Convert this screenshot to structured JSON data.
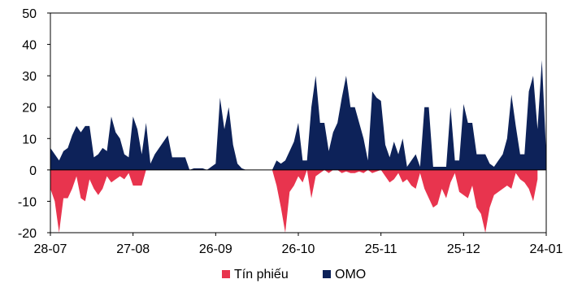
{
  "chart_data": {
    "type": "area",
    "x_tick_labels": [
      "28-07",
      "27-08",
      "26-09",
      "26-10",
      "25-11",
      "25-12",
      "24-01"
    ],
    "y_tick_labels": [
      "50",
      "40",
      "30",
      "20",
      "10",
      "0",
      "-10",
      "-20"
    ],
    "ylim": [
      -20,
      50
    ],
    "y_ticks": [
      50,
      40,
      30,
      20,
      10,
      0,
      -10,
      -20
    ],
    "grid": false,
    "legend_position": "bottom",
    "series": [
      {
        "name": "Tín phiếu",
        "color": "#e8344e",
        "points": [
          [
            0,
            -6
          ],
          [
            1,
            -10
          ],
          [
            2,
            -20
          ],
          [
            3,
            -9
          ],
          [
            4,
            -9
          ],
          [
            5,
            -6
          ],
          [
            6,
            -2
          ],
          [
            7,
            -9
          ],
          [
            8,
            -10
          ],
          [
            9,
            -3
          ],
          [
            10,
            -6
          ],
          [
            11,
            -8
          ],
          [
            12,
            -6
          ],
          [
            13,
            -2
          ],
          [
            14,
            -4
          ],
          [
            15,
            -3
          ],
          [
            16,
            -2
          ],
          [
            17,
            -3
          ],
          [
            18,
            -1
          ],
          [
            19,
            -5
          ],
          [
            20,
            -5
          ],
          [
            21,
            -5
          ],
          [
            22,
            0
          ],
          [
            23,
            0
          ],
          [
            30,
            0
          ],
          [
            31,
            0
          ],
          [
            50,
            0
          ],
          [
            51,
            0
          ],
          [
            52,
            -5
          ],
          [
            53,
            -12
          ],
          [
            54,
            -20
          ],
          [
            55,
            -7
          ],
          [
            56,
            -5
          ],
          [
            57,
            -2
          ],
          [
            58,
            -4
          ],
          [
            59,
            0
          ],
          [
            60,
            -9
          ],
          [
            61,
            -2
          ],
          [
            62,
            -1
          ],
          [
            63,
            0
          ],
          [
            64,
            -1
          ],
          [
            65,
            0
          ],
          [
            66,
            0
          ],
          [
            67,
            -1
          ],
          [
            68,
            -0.5
          ],
          [
            69,
            -1
          ],
          [
            70,
            -1
          ],
          [
            71,
            -0.5
          ],
          [
            72,
            -1
          ],
          [
            73,
            0
          ],
          [
            74,
            -1
          ],
          [
            75,
            -0.5
          ],
          [
            76,
            0
          ],
          [
            77,
            -2
          ],
          [
            78,
            -4
          ],
          [
            79,
            -3
          ],
          [
            80,
            -1
          ],
          [
            81,
            -4
          ],
          [
            82,
            -3
          ],
          [
            83,
            -5
          ],
          [
            84,
            -6
          ],
          [
            85,
            -1
          ],
          [
            86,
            -6
          ],
          [
            87,
            -9
          ],
          [
            88,
            -12
          ],
          [
            89,
            -11
          ],
          [
            90,
            -6
          ],
          [
            91,
            -9
          ],
          [
            92,
            -4
          ],
          [
            93,
            -1
          ],
          [
            94,
            -7
          ],
          [
            95,
            -8
          ],
          [
            96,
            -9
          ],
          [
            97,
            -5
          ],
          [
            98,
            -12
          ],
          [
            99,
            -14
          ],
          [
            100,
            -20
          ],
          [
            101,
            -12
          ],
          [
            102,
            -8
          ],
          [
            103,
            -7
          ],
          [
            104,
            -6
          ],
          [
            105,
            -5
          ],
          [
            106,
            -6
          ],
          [
            107,
            -1
          ],
          [
            108,
            -3
          ],
          [
            109,
            -4
          ],
          [
            110,
            -6
          ],
          [
            111,
            -10
          ],
          [
            112,
            -3
          ]
        ]
      },
      {
        "name": "OMO",
        "color": "#0d2259",
        "points": [
          [
            0,
            7
          ],
          [
            1,
            5
          ],
          [
            2,
            3
          ],
          [
            3,
            6
          ],
          [
            4,
            7
          ],
          [
            5,
            11
          ],
          [
            6,
            14
          ],
          [
            7,
            12
          ],
          [
            8,
            14
          ],
          [
            9,
            14
          ],
          [
            10,
            4
          ],
          [
            11,
            5
          ],
          [
            12,
            7
          ],
          [
            13,
            6
          ],
          [
            14,
            17
          ],
          [
            15,
            12
          ],
          [
            16,
            10
          ],
          [
            17,
            5
          ],
          [
            18,
            4
          ],
          [
            19,
            17
          ],
          [
            20,
            13
          ],
          [
            21,
            5
          ],
          [
            22,
            15
          ],
          [
            23,
            2
          ],
          [
            24,
            5
          ],
          [
            25,
            7
          ],
          [
            26,
            9
          ],
          [
            27,
            11
          ],
          [
            28,
            4
          ],
          [
            29,
            4
          ],
          [
            30,
            4
          ],
          [
            31,
            4
          ],
          [
            32,
            0
          ],
          [
            33,
            0.5
          ],
          [
            34,
            0.5
          ],
          [
            35,
            0.5
          ],
          [
            36,
            0
          ],
          [
            37,
            1
          ],
          [
            38,
            2
          ],
          [
            39,
            23
          ],
          [
            40,
            13
          ],
          [
            41,
            20
          ],
          [
            42,
            8
          ],
          [
            43,
            2
          ],
          [
            44,
            0.5
          ],
          [
            45,
            0
          ],
          [
            46,
            0
          ],
          [
            47,
            0
          ],
          [
            48,
            0
          ],
          [
            49,
            0
          ],
          [
            50,
            0
          ],
          [
            51,
            0
          ],
          [
            52,
            3
          ],
          [
            53,
            2
          ],
          [
            54,
            3
          ],
          [
            55,
            6
          ],
          [
            56,
            9
          ],
          [
            57,
            15
          ],
          [
            58,
            3
          ],
          [
            59,
            3
          ],
          [
            60,
            20
          ],
          [
            61,
            30
          ],
          [
            62,
            15
          ],
          [
            63,
            15
          ],
          [
            64,
            6
          ],
          [
            65,
            12
          ],
          [
            66,
            15
          ],
          [
            67,
            23
          ],
          [
            68,
            30
          ],
          [
            69,
            20
          ],
          [
            70,
            20
          ],
          [
            71,
            15
          ],
          [
            72,
            10
          ],
          [
            73,
            3
          ],
          [
            74,
            25
          ],
          [
            75,
            23
          ],
          [
            76,
            22
          ],
          [
            77,
            8
          ],
          [
            78,
            4
          ],
          [
            79,
            9
          ],
          [
            80,
            5
          ],
          [
            81,
            10
          ],
          [
            82,
            1
          ],
          [
            83,
            3
          ],
          [
            84,
            5
          ],
          [
            85,
            1
          ],
          [
            86,
            20
          ],
          [
            87,
            20
          ],
          [
            88,
            1
          ],
          [
            89,
            1
          ],
          [
            90,
            1
          ],
          [
            91,
            1
          ],
          [
            92,
            20
          ],
          [
            93,
            3
          ],
          [
            94,
            3
          ],
          [
            95,
            21
          ],
          [
            96,
            15
          ],
          [
            97,
            15
          ],
          [
            98,
            5
          ],
          [
            99,
            5
          ],
          [
            100,
            5
          ],
          [
            101,
            2
          ],
          [
            102,
            1
          ],
          [
            103,
            3
          ],
          [
            104,
            5
          ],
          [
            105,
            10
          ],
          [
            106,
            24
          ],
          [
            107,
            14
          ],
          [
            108,
            5
          ],
          [
            109,
            5
          ],
          [
            110,
            25
          ],
          [
            111,
            30
          ],
          [
            112,
            13
          ],
          [
            113,
            35
          ],
          [
            114,
            5
          ]
        ]
      }
    ]
  }
}
